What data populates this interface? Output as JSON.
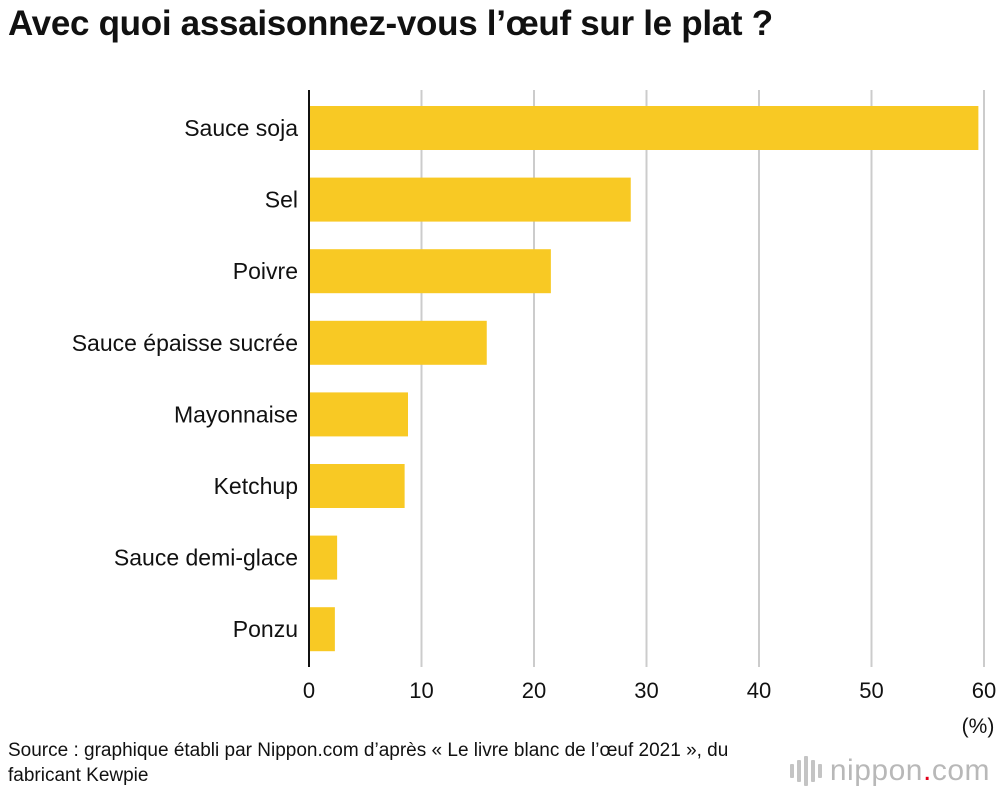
{
  "chart_data": {
    "type": "bar",
    "orientation": "horizontal",
    "title": "Avec quoi assaisonnez-vous l’œuf sur le plat ?",
    "categories": [
      "Sauce soja",
      "Sel",
      "Poivre",
      "Sauce épaisse sucrée",
      "Mayonnaise",
      "Ketchup",
      "Sauce demi-glace",
      "Ponzu"
    ],
    "values": [
      59.5,
      28.6,
      21.5,
      15.8,
      8.8,
      8.5,
      2.5,
      2.3
    ],
    "xlim": [
      0,
      60
    ],
    "xticks": [
      "0",
      "10",
      "20",
      "30",
      "40",
      "50",
      "60"
    ],
    "xunit": "(%)",
    "grid": "vertical",
    "bar_color": "#f8c924",
    "grid_color": "#cccccc"
  },
  "footer": {
    "source": "Source : graphique établi par Nippon.com d’après « Le livre blanc de l’œuf 2021 », du fabricant Kewpie",
    "logo_text_main": "nippon",
    "logo_text_dot": ".",
    "logo_text_tld": "com"
  }
}
